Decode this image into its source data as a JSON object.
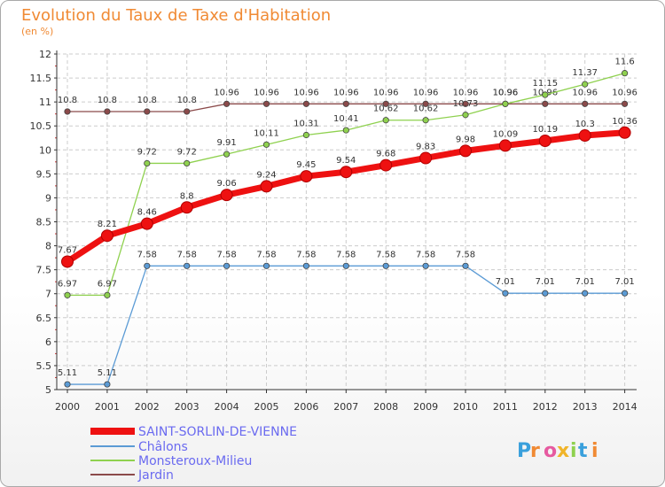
{
  "chart_data": {
    "type": "line",
    "title": "Evolution du Taux de Taxe d'Habitation",
    "ylabel": "(en %)",
    "x": [
      "2000",
      "2001",
      "2002",
      "2003",
      "2004",
      "2005",
      "2006",
      "2007",
      "2008",
      "2009",
      "2010",
      "2011",
      "2012",
      "2013",
      "2014"
    ],
    "ylim": [
      5,
      12
    ],
    "yticks": [
      "5",
      "5.5",
      "6",
      "6.5",
      "7",
      "7.5",
      "8",
      "8.5",
      "9",
      "9.5",
      "10",
      "10.5",
      "11",
      "11.5",
      "12"
    ],
    "grid": true,
    "legend_position": "bottom-left",
    "series": [
      {
        "name": "SAINT-SORLIN-DE-VIENNE",
        "color": "#ee1111",
        "values": [
          7.67,
          8.21,
          8.46,
          8.8,
          9.06,
          9.24,
          9.45,
          9.54,
          9.68,
          9.83,
          9.98,
          10.09,
          10.19,
          10.3,
          10.36
        ],
        "labels": [
          "7.67",
          "8.21",
          "8.46",
          "8.8",
          "9.06",
          "9.24",
          "9.45",
          "9.54",
          "9.68",
          "9.83",
          "9.98",
          "10.09",
          "10.19",
          "10.3",
          "10.36"
        ]
      },
      {
        "name": "Châlons",
        "color": "#5b9bd5",
        "values": [
          5.11,
          5.11,
          7.58,
          7.58,
          7.58,
          7.58,
          7.58,
          7.58,
          7.58,
          7.58,
          7.58,
          7.01,
          7.01,
          7.01,
          7.01
        ],
        "labels": [
          "5.11",
          "5.11",
          "7.58",
          "7.58",
          "7.58",
          "7.58",
          "7.58",
          "7.58",
          "7.58",
          "7.58",
          "7.58",
          "7.01",
          "7.01",
          "7.01",
          "7.01"
        ]
      },
      {
        "name": "Monsteroux-Milieu",
        "color": "#8fd14f",
        "values": [
          6.97,
          6.97,
          9.72,
          9.72,
          9.91,
          10.11,
          10.31,
          10.41,
          10.62,
          10.62,
          10.73,
          10.96,
          11.15,
          11.37,
          11.6
        ],
        "labels": [
          "6.97",
          "6.97",
          "9.72",
          "9.72",
          "9.91",
          "10.11",
          "10.31",
          "10.41",
          "10.62",
          "10.62",
          "10.73",
          "10.96",
          "11.15",
          "11.37",
          "11.6"
        ]
      },
      {
        "name": "Jardin",
        "color": "#8b4a4a",
        "values": [
          10.8,
          10.8,
          10.8,
          10.8,
          10.96,
          10.96,
          10.96,
          10.96,
          10.96,
          10.96,
          10.96,
          10.96,
          10.96,
          10.96,
          10.96
        ],
        "labels": [
          "10.8",
          "10.8",
          "10.8",
          "10.8",
          "10.96",
          "10.96",
          "10.96",
          "10.96",
          "10.96",
          "10.96",
          "10.96",
          "10.96",
          "10.96",
          "10.96",
          "10.96"
        ]
      }
    ]
  },
  "watermark": "Proxiti"
}
